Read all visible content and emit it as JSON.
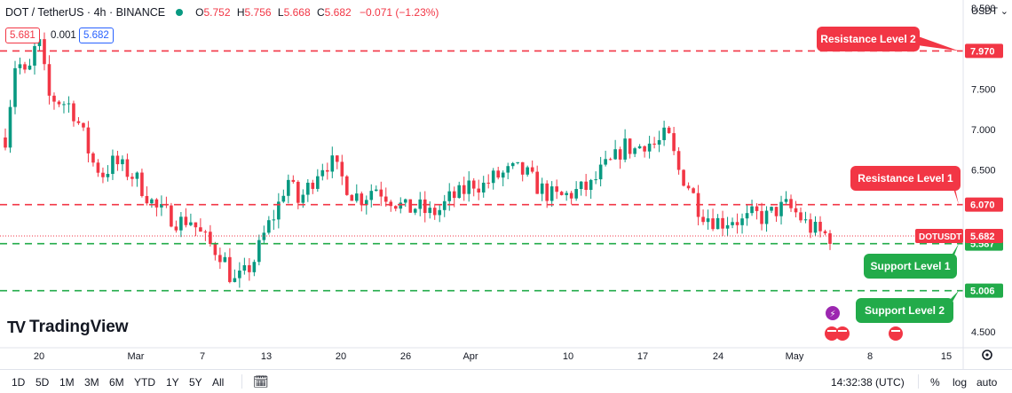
{
  "header": {
    "symbol": "DOT / TetherUS · 4h · BINANCE",
    "open_label": "O",
    "open": "5.752",
    "high_label": "H",
    "high": "5.756",
    "low_label": "L",
    "low": "5.668",
    "close_label": "C",
    "close": "5.682",
    "change": "−0.071 (−1.23%)",
    "bid": "5.681",
    "spread": "0.001",
    "ask": "5.682",
    "currency": "USDT ⌄"
  },
  "brand": {
    "name": "TradingView"
  },
  "toolbar": {
    "timeframes": [
      "1D",
      "5D",
      "1M",
      "3M",
      "6M",
      "YTD",
      "1Y",
      "5Y",
      "All"
    ],
    "clock": "14:32:38 (UTC)",
    "percent": "%",
    "log": "log",
    "auto": "auto"
  },
  "colors": {
    "up": "#089981",
    "down": "#f23645",
    "resistance": "#f23645",
    "support": "#22ab4a",
    "price": "#f23645"
  },
  "chart_data": {
    "type": "candlestick",
    "y_axis": {
      "min": 4.3,
      "max": 8.6,
      "ticks": [
        "8.500",
        "7.500",
        "7.000",
        "6.500",
        "4.500"
      ]
    },
    "x_axis": {
      "ticks": [
        "20",
        "Mar",
        "7",
        "13",
        "20",
        "26",
        "Apr",
        "10",
        "17",
        "24",
        "May",
        "8",
        "15"
      ]
    },
    "levels": [
      {
        "name": "Resistance Level 2",
        "value": 7.97,
        "label": "7.970",
        "kind": "resistance"
      },
      {
        "name": "Resistance Level 1",
        "value": 6.07,
        "label": "6.070",
        "kind": "resistance"
      },
      {
        "name": "Support Level 1",
        "value": 5.587,
        "label": "5.587",
        "kind": "support"
      },
      {
        "name": "Support Level 2",
        "value": 5.006,
        "label": "5.006",
        "kind": "support"
      }
    ],
    "last_price": {
      "symbol": "DOTUSDT",
      "value": 5.682,
      "label": "5.682"
    },
    "price_path": [
      [
        "2023-02-16",
        6.9
      ],
      [
        "2023-02-17",
        7.9
      ],
      [
        "2023-02-18",
        7.6
      ],
      [
        "2023-02-19",
        8.15
      ],
      [
        "2023-02-20",
        7.4
      ],
      [
        "2023-02-21",
        7.35
      ],
      [
        "2023-02-22",
        7.3
      ],
      [
        "2023-02-23",
        7.0
      ],
      [
        "2023-02-24",
        6.6
      ],
      [
        "2023-02-25",
        6.45
      ],
      [
        "2023-02-26",
        6.6
      ],
      [
        "2023-02-27",
        6.5
      ],
      [
        "2023-02-28",
        6.4
      ],
      [
        "2023-03-01",
        6.2
      ],
      [
        "2023-03-02",
        6.0
      ],
      [
        "2023-03-03",
        5.95
      ],
      [
        "2023-03-04",
        5.85
      ],
      [
        "2023-03-05",
        5.9
      ],
      [
        "2023-03-06",
        5.7
      ],
      [
        "2023-03-07",
        5.55
      ],
      [
        "2023-03-08",
        5.45
      ],
      [
        "2023-03-09",
        5.1
      ],
      [
        "2023-03-10",
        5.2
      ],
      [
        "2023-03-11",
        5.4
      ],
      [
        "2023-03-12",
        5.75
      ],
      [
        "2023-03-13",
        6.0
      ],
      [
        "2023-03-14",
        6.4
      ],
      [
        "2023-03-15",
        6.1
      ],
      [
        "2023-03-16",
        6.3
      ],
      [
        "2023-03-17",
        6.55
      ],
      [
        "2023-03-18",
        6.6
      ],
      [
        "2023-03-19",
        6.4
      ],
      [
        "2023-03-20",
        6.2
      ],
      [
        "2023-03-21",
        6.15
      ],
      [
        "2023-03-22",
        6.3
      ],
      [
        "2023-03-23",
        6.2
      ],
      [
        "2023-03-24",
        6.1
      ],
      [
        "2023-03-25",
        6.0
      ],
      [
        "2023-03-26",
        6.05
      ],
      [
        "2023-03-27",
        5.95
      ],
      [
        "2023-03-28",
        6.0
      ],
      [
        "2023-03-29",
        6.15
      ],
      [
        "2023-03-30",
        6.2
      ],
      [
        "2023-03-31",
        6.35
      ],
      [
        "2023-04-01",
        6.3
      ],
      [
        "2023-04-02",
        6.4
      ],
      [
        "2023-04-03",
        6.45
      ],
      [
        "2023-04-04",
        6.5
      ],
      [
        "2023-04-05",
        6.45
      ],
      [
        "2023-04-06",
        6.3
      ],
      [
        "2023-04-07",
        6.2
      ],
      [
        "2023-04-08",
        6.15
      ],
      [
        "2023-04-09",
        6.2
      ],
      [
        "2023-04-10",
        6.25
      ],
      [
        "2023-04-11",
        6.3
      ],
      [
        "2023-04-12",
        6.5
      ],
      [
        "2023-04-13",
        6.6
      ],
      [
        "2023-04-14",
        6.8
      ],
      [
        "2023-04-15",
        6.75
      ],
      [
        "2023-04-16",
        6.85
      ],
      [
        "2023-04-17",
        6.8
      ],
      [
        "2023-04-18",
        6.95
      ],
      [
        "2023-04-19",
        6.5
      ],
      [
        "2023-04-20",
        6.3
      ],
      [
        "2023-04-21",
        6.0
      ],
      [
        "2023-04-22",
        5.9
      ],
      [
        "2023-04-23",
        5.85
      ],
      [
        "2023-04-24",
        5.9
      ],
      [
        "2023-04-25",
        5.85
      ],
      [
        "2023-04-26",
        5.95
      ],
      [
        "2023-04-27",
        5.9
      ],
      [
        "2023-04-28",
        6.0
      ],
      [
        "2023-04-29",
        6.05
      ],
      [
        "2023-04-30",
        5.95
      ],
      [
        "2023-05-01",
        5.8
      ],
      [
        "2023-05-02",
        5.72
      ],
      [
        "2023-05-03",
        5.68
      ]
    ]
  }
}
